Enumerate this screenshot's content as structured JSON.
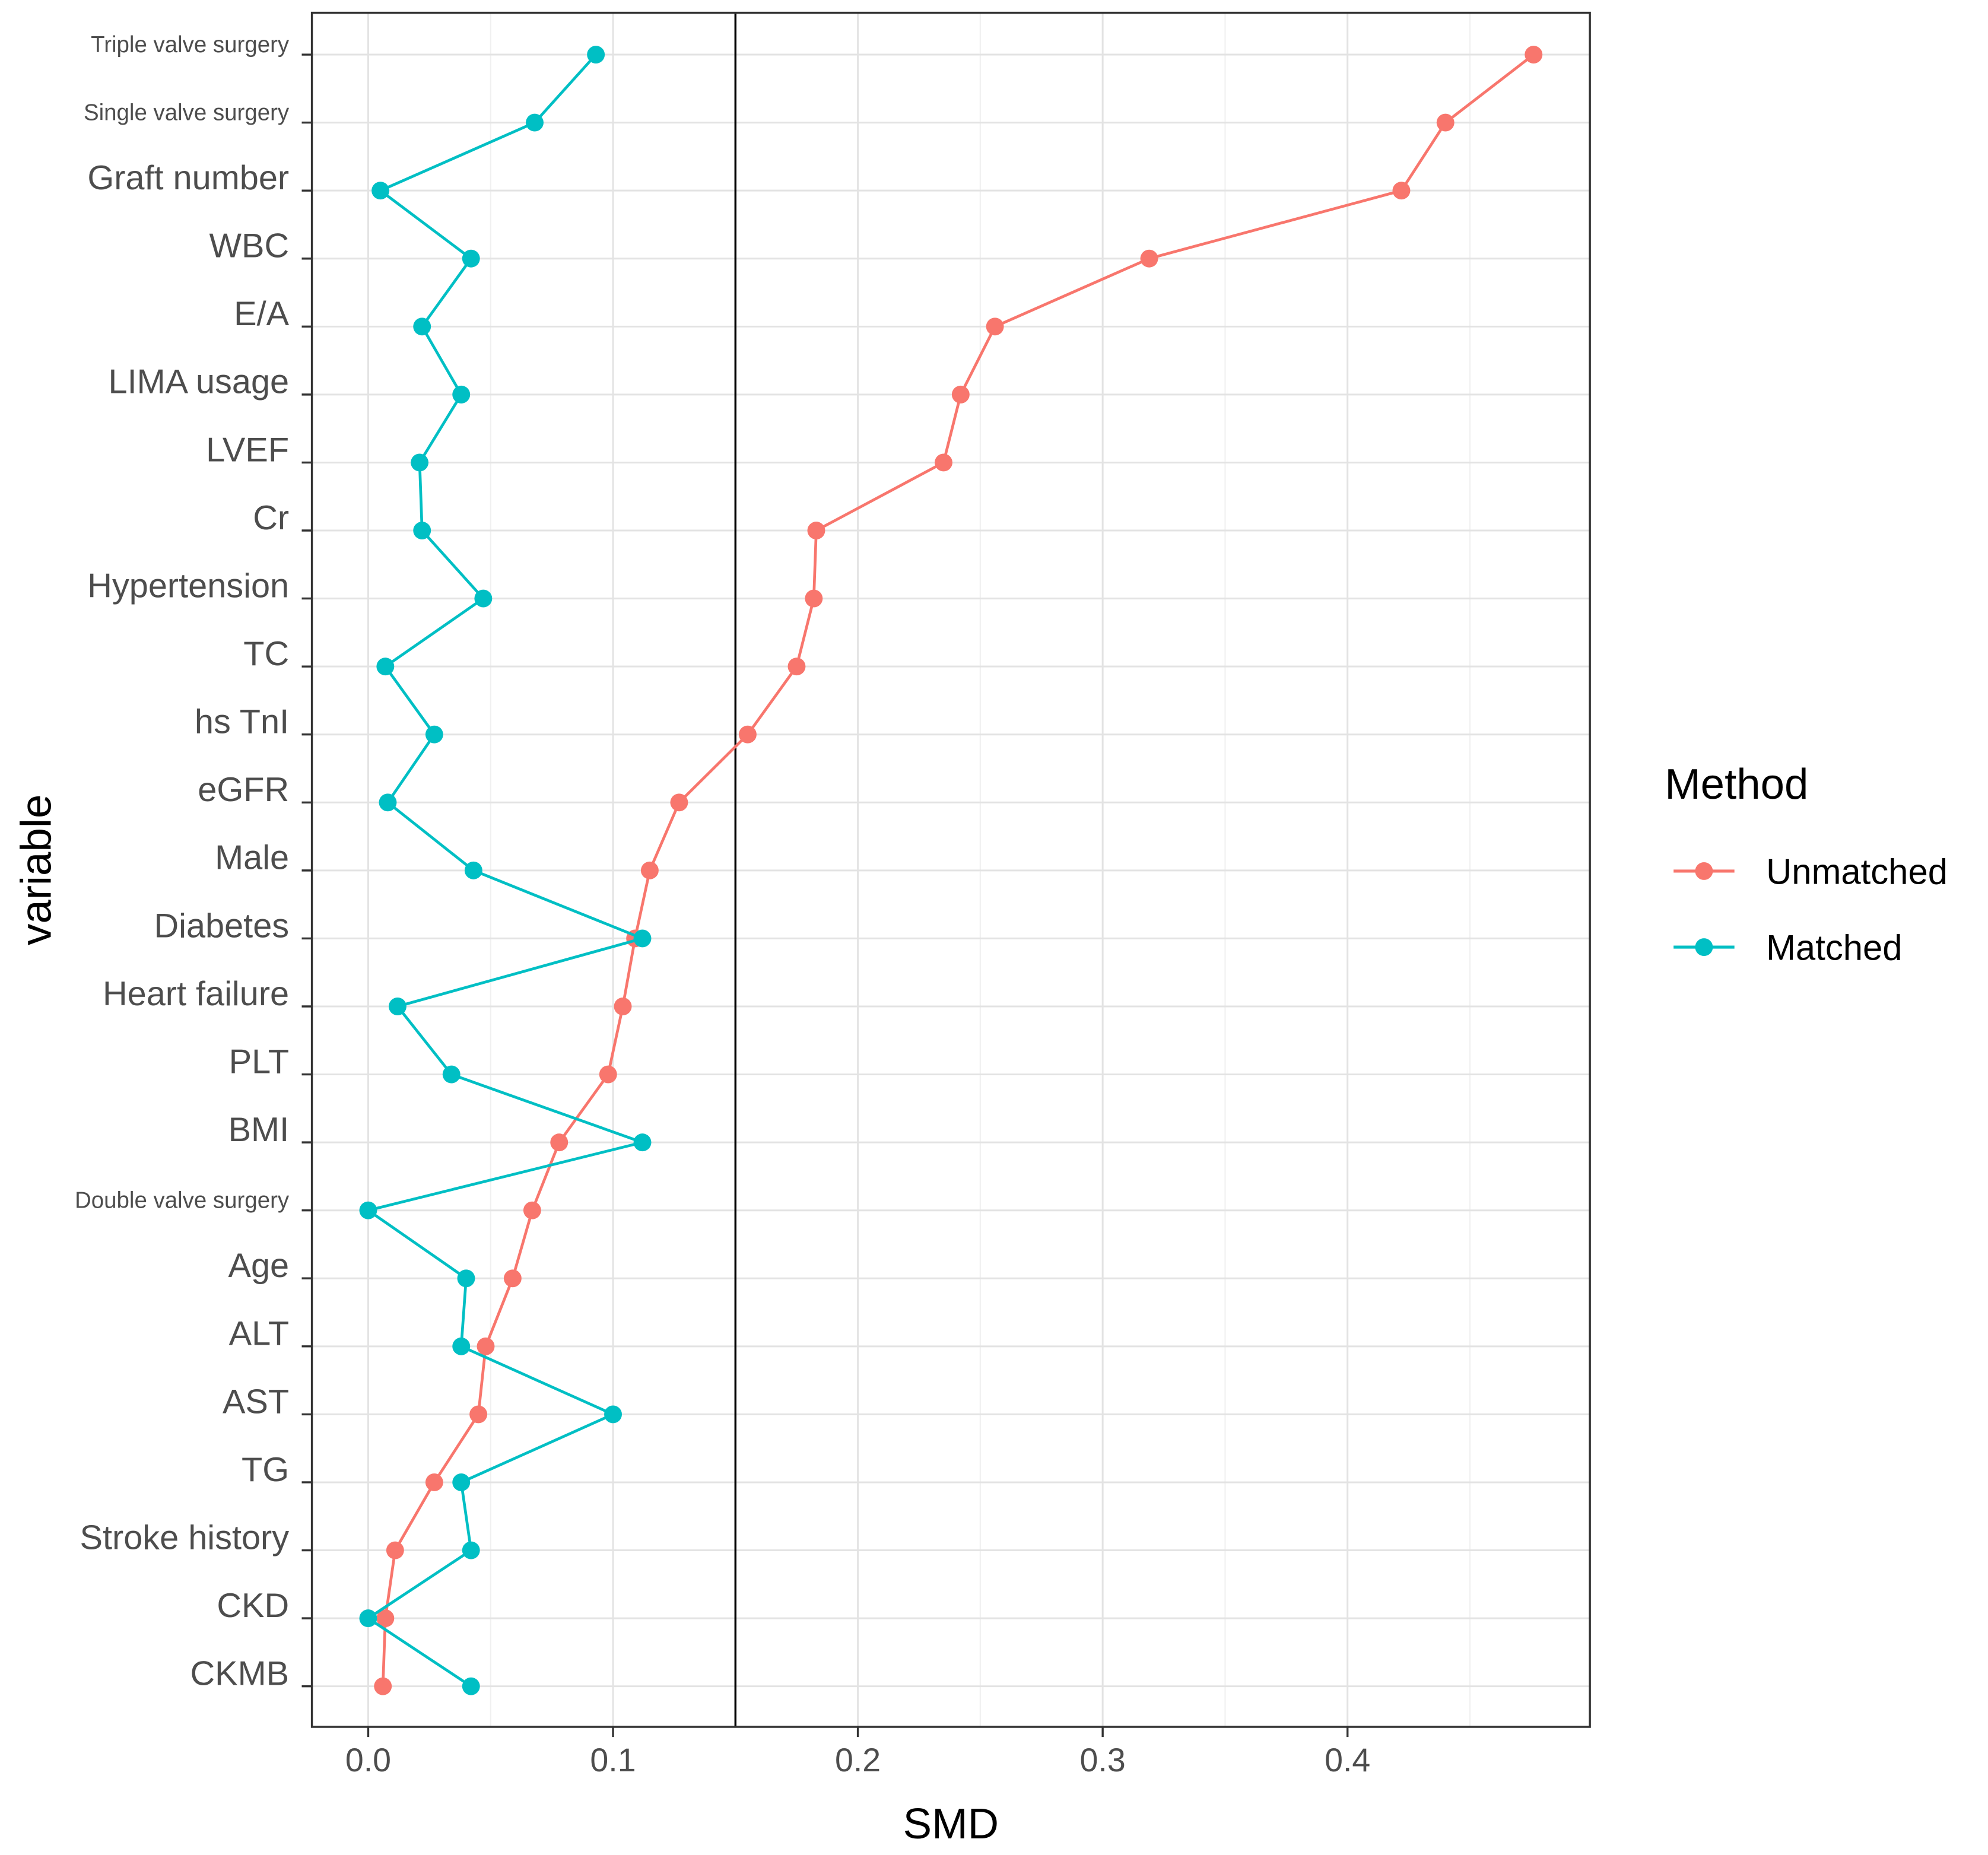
{
  "chart_data": {
    "type": "line",
    "title": "",
    "xlabel": "SMD",
    "ylabel": "variable",
    "xlim": [
      -0.023,
      0.499
    ],
    "x_ticks": [
      "0.0",
      "0.1",
      "0.2",
      "0.3",
      "0.4"
    ],
    "x_tick_values": [
      0,
      0.1,
      0.2,
      0.3,
      0.4
    ],
    "reference_line": 0.15,
    "grid": true,
    "legend": {
      "title": "Method",
      "placement": "right"
    },
    "categories": [
      "Triple valve surgery",
      "Single valve surgery",
      "Graft number",
      "WBC",
      "E/A",
      "LIMA usage",
      "LVEF",
      "Cr",
      "Hypertension",
      "TC",
      "hs TnI",
      "eGFR",
      "Male",
      "Diabetes",
      "Heart failure",
      "PLT",
      "BMI",
      "Double valve surgery",
      "Age",
      "ALT",
      "AST",
      "TG",
      "Stroke history",
      "CKD",
      "CKMB"
    ],
    "small_label_categories": [
      "Triple valve surgery",
      "Single valve surgery",
      "Double valve surgery"
    ],
    "series": [
      {
        "name": "Unmatched",
        "color": "#F8766D",
        "values": [
          0.476,
          0.44,
          0.422,
          0.319,
          0.256,
          0.242,
          0.235,
          0.183,
          0.182,
          0.175,
          0.155,
          0.127,
          0.115,
          0.109,
          0.104,
          0.098,
          0.078,
          0.067,
          0.059,
          0.048,
          0.045,
          0.027,
          0.011,
          0.007,
          0.006
        ]
      },
      {
        "name": "Matched",
        "color": "#00BFC4",
        "values": [
          0.093,
          0.068,
          0.005,
          0.042,
          0.022,
          0.038,
          0.021,
          0.022,
          0.047,
          0.007,
          0.027,
          0.008,
          0.043,
          0.112,
          0.012,
          0.034,
          0.112,
          0.0,
          0.04,
          0.038,
          0.1,
          0.038,
          0.042,
          0.0,
          0.042
        ]
      }
    ]
  }
}
